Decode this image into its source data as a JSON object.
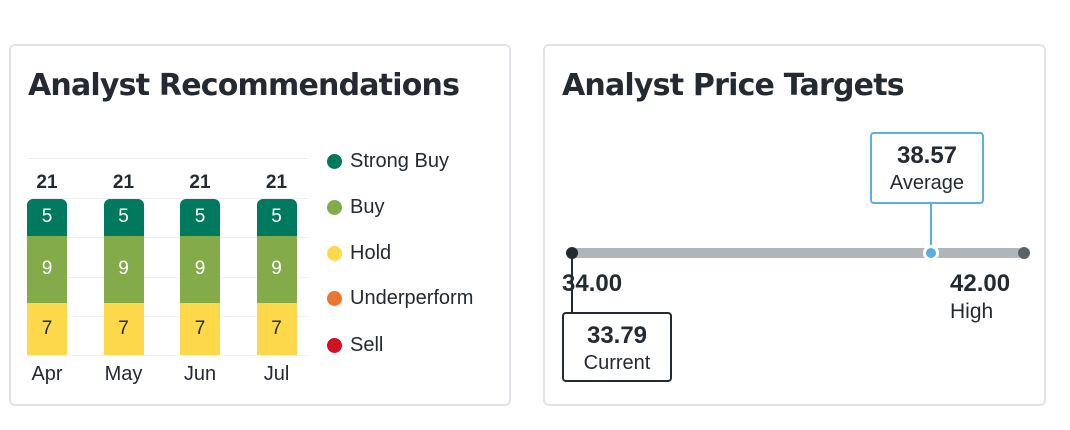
{
  "recommendations": {
    "title": "Analyst Recommendations",
    "legend": [
      {
        "label": "Strong Buy",
        "color": "#007a5e"
      },
      {
        "label": "Buy",
        "color": "#84ab4a"
      },
      {
        "label": "Hold",
        "color": "#fcd84a"
      },
      {
        "label": "Underperform",
        "color": "#ec7532"
      },
      {
        "label": "Sell",
        "color": "#d30f22"
      }
    ]
  },
  "price_targets": {
    "title": "Analyst Price Targets",
    "low": {
      "value": "34.00"
    },
    "average": {
      "value": "38.57",
      "label": "Average"
    },
    "high": {
      "value": "42.00",
      "label": "High"
    },
    "current": {
      "value": "33.79",
      "label": "Current"
    }
  },
  "chart_data": [
    {
      "type": "bar",
      "title": "Analyst Recommendations",
      "stacked": true,
      "categories": [
        "Apr",
        "May",
        "Jun",
        "Jul"
      ],
      "totals": [
        21,
        21,
        21,
        21
      ],
      "series": [
        {
          "name": "Strong Buy",
          "values": [
            5,
            5,
            5,
            5
          ],
          "color": "#007a5e"
        },
        {
          "name": "Buy",
          "values": [
            9,
            9,
            9,
            9
          ],
          "color": "#84ab4a"
        },
        {
          "name": "Hold",
          "values": [
            7,
            7,
            7,
            7
          ],
          "color": "#fcd84a"
        },
        {
          "name": "Underperform",
          "values": [
            0,
            0,
            0,
            0
          ],
          "color": "#ec7532"
        },
        {
          "name": "Sell",
          "values": [
            0,
            0,
            0,
            0
          ],
          "color": "#d30f22"
        }
      ],
      "legend_position": "right",
      "grid": true
    },
    {
      "type": "range",
      "title": "Analyst Price Targets",
      "low": 34.0,
      "average": 38.57,
      "high": 42.0,
      "current": 33.79
    }
  ]
}
